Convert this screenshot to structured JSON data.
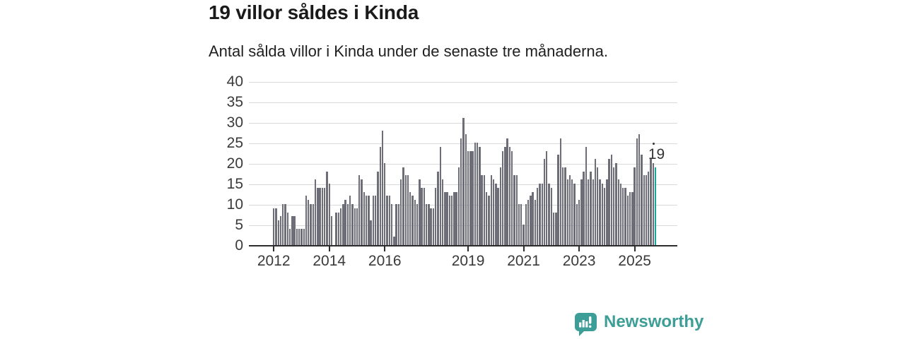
{
  "header": {
    "title": "19 villor såldes i Kinda",
    "subtitle": "Antal sålda villor i Kinda under de senaste tre månaderna."
  },
  "chart_data": {
    "type": "bar",
    "title": "19 villor såldes i Kinda",
    "subtitle": "Antal sålda villor i Kinda under de senaste tre månaderna.",
    "xlabel": "",
    "ylabel": "",
    "x_start": "2012-01",
    "x_end": "2025-10",
    "x_tick_labels": [
      "2012",
      "2014",
      "2016",
      "2019",
      "2021",
      "2023",
      "2025"
    ],
    "y_ticks": [
      0,
      5,
      10,
      15,
      20,
      25,
      30,
      35,
      40
    ],
    "ylim": [
      0,
      40
    ],
    "grid": "horizontal",
    "bar_color": "#6e6e78",
    "highlight_color": "#17a79d",
    "highlight_last": true,
    "highlight_value_label": "19",
    "values": [
      9,
      9,
      6,
      7,
      10,
      10,
      8,
      4,
      7,
      7,
      4,
      4,
      4,
      4,
      12,
      11,
      10,
      10,
      16,
      14,
      14,
      14,
      14,
      18,
      15,
      7,
      0,
      8,
      8,
      9,
      10,
      11,
      10,
      12,
      10,
      9,
      9,
      17,
      16,
      13,
      12,
      12,
      6,
      12,
      12,
      18,
      24,
      28,
      20,
      12,
      12,
      10,
      2,
      10,
      10,
      16,
      19,
      17,
      17,
      13,
      12,
      11,
      10,
      16,
      14,
      14,
      10,
      10,
      9,
      9,
      14,
      18,
      24,
      16,
      13,
      13,
      12,
      12,
      13,
      13,
      19,
      26,
      31,
      27,
      23,
      23,
      23,
      25,
      25,
      24,
      17,
      17,
      13,
      12,
      17,
      16,
      15,
      14,
      19,
      23,
      24,
      26,
      24,
      23,
      17,
      17,
      10,
      10,
      5,
      10,
      11,
      12,
      13,
      11,
      14,
      15,
      15,
      21,
      23,
      15,
      14,
      8,
      8,
      22,
      26,
      19,
      19,
      16,
      17,
      16,
      15,
      10,
      11,
      16,
      18,
      24,
      16,
      18,
      16,
      21,
      19,
      16,
      15,
      14,
      16,
      21,
      22,
      19,
      20,
      16,
      15,
      14,
      14,
      12,
      13,
      13,
      19,
      26,
      27,
      22,
      17,
      17,
      18,
      21,
      20,
      19
    ]
  },
  "branding": {
    "logo_text": "Newsworthy",
    "logo_color": "#3d9e97",
    "logo_icon": "newsworthy-bubble-barchart-icon"
  }
}
